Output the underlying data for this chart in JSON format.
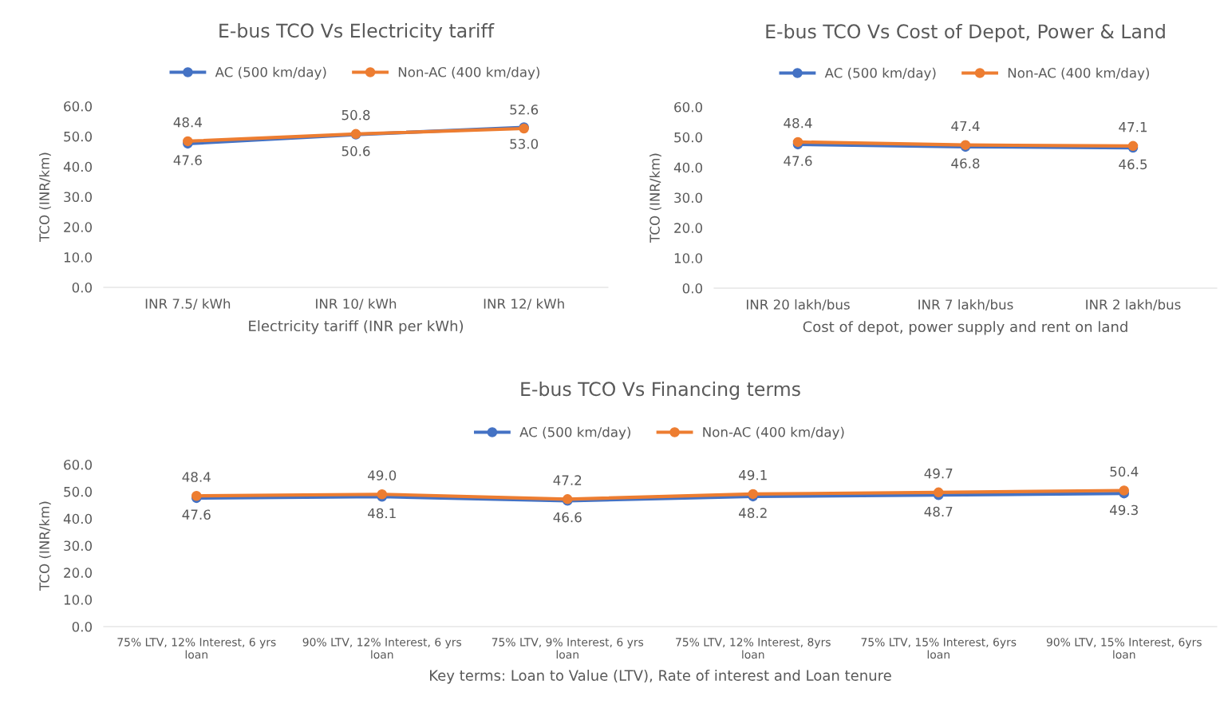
{
  "chart_data": [
    {
      "type": "line",
      "title": "E-bus TCO Vs Electricity tariff",
      "xlabel": "Electricity tariff (INR per kWh)",
      "ylabel": "TCO (INR/km)",
      "categories": [
        "INR 7.5/ kWh",
        "INR 10/ kWh",
        "INR 12/ kWh"
      ],
      "series": [
        {
          "name": "AC (500 km/day)",
          "color": "#4472c4",
          "values": [
            47.6,
            50.6,
            53.0
          ],
          "value_labels": [
            "47.6",
            "50.6",
            "53.0"
          ]
        },
        {
          "name": "Non-AC (400 km/day)",
          "color": "#ed7d31",
          "values": [
            48.4,
            50.8,
            52.6
          ],
          "value_labels": [
            "48.4",
            "50.8",
            "52.6"
          ]
        }
      ],
      "ylim": [
        0,
        60
      ],
      "yticks": [
        {
          "value": 0,
          "label": "0.0"
        },
        {
          "value": 10,
          "label": "10.0"
        },
        {
          "value": 20,
          "label": "20.0"
        },
        {
          "value": 30,
          "label": "30.0"
        },
        {
          "value": 40,
          "label": "40.0"
        },
        {
          "value": 50,
          "label": "50.0"
        },
        {
          "value": 60,
          "label": "60.0"
        }
      ],
      "legend": "top",
      "marker": "circle",
      "grid": false
    },
    {
      "type": "line",
      "title": "E-bus TCO Vs Cost of Depot, Power & Land",
      "xlabel": "Cost of depot, power supply and rent on land",
      "ylabel": "TCO (INR/km)",
      "categories": [
        "INR 20 lakh/bus",
        "INR 7 lakh/bus",
        "INR 2 lakh/bus"
      ],
      "series": [
        {
          "name": "AC (500 km/day)",
          "color": "#4472c4",
          "values": [
            47.6,
            46.8,
            46.5
          ],
          "value_labels": [
            "47.6",
            "46.8",
            "46.5"
          ]
        },
        {
          "name": "Non-AC (400 km/day)",
          "color": "#ed7d31",
          "values": [
            48.4,
            47.4,
            47.1
          ],
          "value_labels": [
            "48.4",
            "47.4",
            "47.1"
          ]
        }
      ],
      "ylim": [
        0,
        60
      ],
      "yticks": [
        {
          "value": 0,
          "label": "0.0"
        },
        {
          "value": 10,
          "label": "10.0"
        },
        {
          "value": 20,
          "label": "20.0"
        },
        {
          "value": 30,
          "label": "30.0"
        },
        {
          "value": 40,
          "label": "40.0"
        },
        {
          "value": 50,
          "label": "50.0"
        },
        {
          "value": 60,
          "label": "60.0"
        }
      ],
      "legend": "top",
      "marker": "circle",
      "grid": false
    },
    {
      "type": "line",
      "title": "E-bus TCO Vs Financing terms",
      "xlabel": "Key terms: Loan to Value (LTV), Rate of interest and Loan tenure",
      "ylabel": "TCO (INR/km)",
      "categories": [
        "75% LTV, 12% Interest, 6 yrs loan",
        "90% LTV, 12% Interest, 6 yrs loan",
        "75% LTV, 9% Interest, 6 yrs loan",
        "75% LTV, 12% Interest, 8yrs loan",
        "75% LTV, 15% Interest, 6yrs loan",
        "90% LTV, 15% Interest, 6yrs loan"
      ],
      "series": [
        {
          "name": "AC (500 km/day)",
          "color": "#4472c4",
          "values": [
            47.6,
            48.1,
            46.6,
            48.2,
            48.7,
            49.3
          ],
          "value_labels": [
            "47.6",
            "48.1",
            "46.6",
            "48.2",
            "48.7",
            "49.3"
          ]
        },
        {
          "name": "Non-AC (400 km/day)",
          "color": "#ed7d31",
          "values": [
            48.4,
            49.0,
            47.2,
            49.1,
            49.7,
            50.4
          ],
          "value_labels": [
            "48.4",
            "49.0",
            "47.2",
            "49.1",
            "49.7",
            "50.4"
          ]
        }
      ],
      "ylim": [
        0,
        60
      ],
      "yticks": [
        {
          "value": 0,
          "label": "0.0"
        },
        {
          "value": 10,
          "label": "10.0"
        },
        {
          "value": 20,
          "label": "20.0"
        },
        {
          "value": 30,
          "label": "30.0"
        },
        {
          "value": 40,
          "label": "40.0"
        },
        {
          "value": 50,
          "label": "50.0"
        },
        {
          "value": 60,
          "label": "60.0"
        }
      ],
      "legend": "top",
      "marker": "circle",
      "grid": false
    }
  ]
}
